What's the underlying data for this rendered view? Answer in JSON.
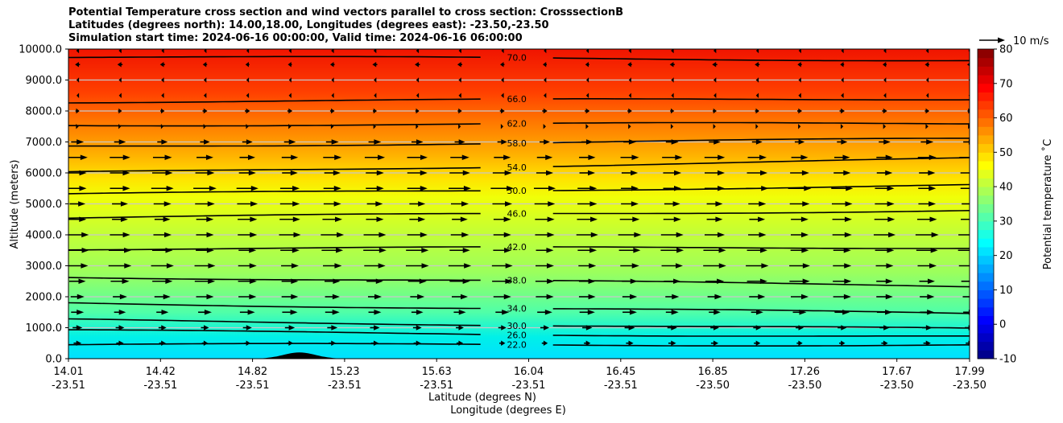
{
  "chart_data": {
    "type": "contour",
    "title_lines": [
      "Potential Temperature cross section and wind vectors parallel to cross section: CrosssectionB",
      "Latitudes (degrees north): 14.00,18.00, Longitudes (degrees east): -23.50,-23.50",
      "Simulation start time: 2024-06-16 00:00:00, Valid time: 2024-06-16 06:00:00"
    ],
    "xlabel": "Latitude (degrees N)",
    "xlabel2": "Longitude (degrees E)",
    "ylabel": "Altitude (meters)",
    "xlim": [
      14.01,
      17.99
    ],
    "ylim": [
      0,
      10000
    ],
    "x_tick_labels": [
      {
        "lat": "14.01",
        "lon": "-23.51"
      },
      {
        "lat": "14.42",
        "lon": "-23.51"
      },
      {
        "lat": "14.82",
        "lon": "-23.51"
      },
      {
        "lat": "15.23",
        "lon": "-23.51"
      },
      {
        "lat": "15.63",
        "lon": "-23.51"
      },
      {
        "lat": "16.04",
        "lon": "-23.51"
      },
      {
        "lat": "16.45",
        "lon": "-23.51"
      },
      {
        "lat": "16.85",
        "lon": "-23.50"
      },
      {
        "lat": "17.26",
        "lon": "-23.50"
      },
      {
        "lat": "17.67",
        "lon": "-23.50"
      },
      {
        "lat": "17.99",
        "lon": "-23.50"
      }
    ],
    "y_ticks": [
      0,
      1000,
      2000,
      3000,
      4000,
      5000,
      6000,
      7000,
      8000,
      9000,
      10000
    ],
    "y_tick_labels": [
      "0.0",
      "1000.0",
      "2000.0",
      "3000.0",
      "4000.0",
      "5000.0",
      "6000.0",
      "7000.0",
      "8000.0",
      "9000.0",
      "10000.0"
    ],
    "colorbar": {
      "label": "Potential temperature $^\\circ$C",
      "label_text": "Potential temperature ˚C",
      "range": [
        -10,
        80
      ],
      "ticks": [
        -10,
        0,
        10,
        20,
        30,
        40,
        50,
        60,
        70,
        80
      ],
      "colormap": "jet"
    },
    "contours": [
      {
        "level": 22,
        "label": "22.0",
        "left_alt": 450,
        "right_alt": 450
      },
      {
        "level": 26,
        "label": "26.0",
        "left_alt": 900,
        "right_alt": 700
      },
      {
        "level": 30,
        "label": "30.0",
        "left_alt": 1250,
        "right_alt": 950
      },
      {
        "level": 34,
        "label": "34.0",
        "left_alt": 1800,
        "right_alt": 1450
      },
      {
        "level": 38,
        "label": "38.0",
        "left_alt": 2650,
        "right_alt": 2350
      },
      {
        "level": 42,
        "label": "42.0",
        "left_alt": 3550,
        "right_alt": 3600
      },
      {
        "level": 46,
        "label": "46.0",
        "left_alt": 4550,
        "right_alt": 4800
      },
      {
        "level": 50,
        "label": "50.0",
        "left_alt": 5300,
        "right_alt": 5600
      },
      {
        "level": 54,
        "label": "54.0",
        "left_alt": 6000,
        "right_alt": 6450
      },
      {
        "level": 58,
        "label": "58.0",
        "left_alt": 6850,
        "right_alt": 7100
      },
      {
        "level": 62,
        "label": "62.0",
        "left_alt": 7550,
        "right_alt": 7600
      },
      {
        "level": 66,
        "label": "66.0",
        "left_alt": 8300,
        "right_alt": 8400
      },
      {
        "level": 70,
        "label": "70.0",
        "left_alt": 9750,
        "right_alt": 9650
      }
    ],
    "wind": {
      "reference_label": "10 m/s",
      "reference_speed": 10,
      "levels_m": [
        500,
        1000,
        1500,
        2000,
        2500,
        3000,
        3500,
        4000,
        4500,
        5000,
        5500,
        6000,
        6500,
        7000,
        7500,
        8000,
        8500,
        9000,
        9500,
        10000
      ],
      "speed_m_s": [
        3,
        4,
        6,
        7,
        8,
        9,
        9,
        9,
        8,
        8,
        9,
        8,
        8,
        5,
        1,
        2,
        -1,
        -1,
        -2,
        -1
      ]
    },
    "terrain": {
      "peak_lat": 15.03,
      "peak_alt": 200,
      "half_width_deg": 0.1
    }
  }
}
